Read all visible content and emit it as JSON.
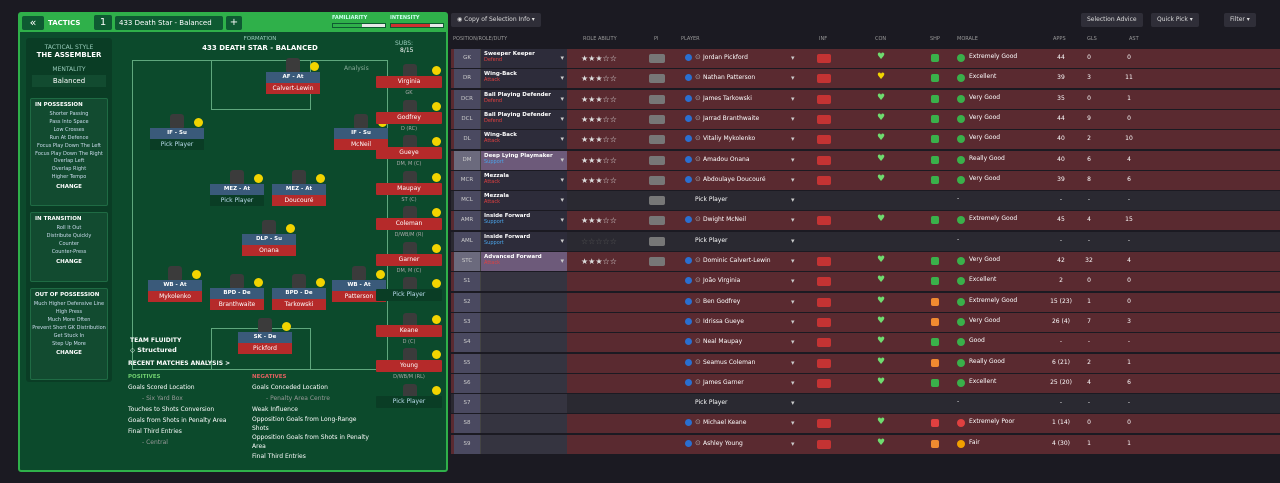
{
  "header": {
    "back_icon": "«",
    "title": "TACTICS",
    "slot": "1",
    "tactic": "433 Death Star - Balanced",
    "add": "+",
    "familiarity": "FAMILIARITY",
    "intensity": "INTENSITY",
    "familiarity_level": 0.55,
    "intensity_level": 0.75
  },
  "style": {
    "label": "TACTICAL STYLE",
    "name": "THE ASSEMBLER",
    "mentality_label": "MENTALITY",
    "mentality": "Balanced"
  },
  "in_possession": {
    "title": "IN POSSESSION",
    "items": [
      "Shorter Passing",
      "Pass Into Space",
      "Low Crosses",
      "Run At Defence",
      "Focus Play Down The Left",
      "Focus Play Down The Right",
      "Overlap Left",
      "Overlap Right",
      "Higher Tempo"
    ],
    "change": "CHANGE"
  },
  "in_transition": {
    "title": "IN TRANSITION",
    "items": [
      "Roll It Out",
      "Distribute Quickly",
      "Counter",
      "Counter-Press"
    ],
    "change": "CHANGE"
  },
  "out_possession": {
    "title": "OUT OF POSSESSION",
    "items": [
      "Much Higher Defensive Line",
      "High Press",
      "Much More Often",
      "Prevent Short GK Distribution",
      "Get Stuck In",
      "Step Up More"
    ],
    "change": "CHANGE"
  },
  "formation": {
    "label": "FORMATION",
    "name": "433 DEATH STAR - BALANCED",
    "subs_label": "SUBS:",
    "subs": "8/15",
    "analysis": "Analysis"
  },
  "pitch": [
    {
      "role": "AF - At",
      "name": "Calvert-Lewin"
    },
    {
      "role": "IF - Su",
      "name": "Pick Player"
    },
    {
      "role": "IF - Su",
      "name": "McNeil"
    },
    {
      "role": "MEZ - At",
      "name": "Pick Player"
    },
    {
      "role": "MEZ - At",
      "name": "Doucouré"
    },
    {
      "role": "DLP - Su",
      "name": "Onana"
    },
    {
      "role": "WB - At",
      "name": "Mykolenko"
    },
    {
      "role": "BPD - De",
      "name": "Branthwaite"
    },
    {
      "role": "BPD - De",
      "name": "Tarkowski"
    },
    {
      "role": "WB - At",
      "name": "Patterson"
    },
    {
      "role": "SK - De",
      "name": "Pickford"
    }
  ],
  "subs": [
    {
      "name": "Virginia",
      "pos": "GK"
    },
    {
      "name": "Godfrey",
      "pos": "D (RC)"
    },
    {
      "name": "Gueye",
      "pos": "DM, M (C)"
    },
    {
      "name": "Maupay",
      "pos": "ST (C)"
    },
    {
      "name": "Coleman",
      "pos": "D/WB/M (R)"
    },
    {
      "name": "Garner",
      "pos": "DM, M (C)"
    },
    {
      "name": "Pick Player",
      "pos": ""
    },
    {
      "name": "Keane",
      "pos": "D (C)"
    },
    {
      "name": "Young",
      "pos": "D/WB/M (RL)"
    },
    {
      "name": "Pick Player",
      "pos": ""
    }
  ],
  "fluidity": {
    "label": "TEAM FLUIDITY",
    "value": "Structured"
  },
  "recent": {
    "title": "RECENT MATCHES ANALYSIS >",
    "pos_label": "POSITIVES",
    "neg_label": "NEGATIVES",
    "positives": [
      "Goals Scored Location",
      "- Six Yard Box",
      "Touches to Shots Conversion",
      "Goals from Shots in Penalty Area",
      "Final Third Entries",
      "- Central"
    ],
    "negatives": [
      "Goals Conceded Location",
      "- Penalty Area Centre",
      "Weak Influence",
      "Opposition Goals from Long-Range Shots",
      "Opposition Goals from Shots in Penalty Area",
      "Final Third Entries"
    ]
  },
  "toolbar": {
    "copy": "Copy of Selection Info",
    "advice": "Selection Advice",
    "quick": "Quick Pick",
    "filter": "Filter"
  },
  "columns": {
    "pos": "POSITION/ROLE/DUTY",
    "ability": "ROLE ABILITY",
    "pi": "PI",
    "player": "PLAYER",
    "inf": "INF",
    "con": "CON",
    "shp": "SHP",
    "morale": "MORALE",
    "apps": "APPS",
    "gls": "GLS",
    "ast": "AST"
  },
  "rows": [
    {
      "pos": "GK",
      "role": "Sweeper Keeper",
      "duty": "Defend",
      "stars": "★★★☆☆",
      "player": "Jordan Pickford",
      "morale": "Extremely Good",
      "apps": "44",
      "gls": "0",
      "ast": "0"
    },
    {
      "pos": "DR",
      "role": "Wing-Back",
      "duty": "Attack",
      "stars": "★★★☆☆",
      "player": "Nathan Patterson",
      "morale": "Excellent",
      "apps": "39",
      "gls": "3",
      "ast": "11"
    },
    {
      "pos": "DCR",
      "role": "Ball Playing Defender",
      "duty": "Defend",
      "stars": "★★★☆☆",
      "player": "James Tarkowski",
      "morale": "Very Good",
      "apps": "35",
      "gls": "0",
      "ast": "1"
    },
    {
      "pos": "DCL",
      "role": "Ball Playing Defender",
      "duty": "Defend",
      "stars": "★★★☆☆",
      "player": "Jarrad Branthwaite",
      "morale": "Very Good",
      "apps": "44",
      "gls": "9",
      "ast": "0"
    },
    {
      "pos": "DL",
      "role": "Wing-Back",
      "duty": "Attack",
      "stars": "★★★☆☆",
      "player": "Vitaliy Mykolenko",
      "morale": "Very Good",
      "apps": "40",
      "gls": "2",
      "ast": "10"
    },
    {
      "pos": "DM",
      "role": "Deep Lying Playmaker",
      "duty": "Support",
      "stars": "★★★☆☆",
      "player": "Amadou Onana",
      "morale": "Really Good",
      "apps": "40",
      "gls": "6",
      "ast": "4"
    },
    {
      "pos": "MCR",
      "role": "Mezzala",
      "duty": "Attack",
      "stars": "★★★☆☆",
      "player": "Abdoulaye Doucouré",
      "morale": "Very Good",
      "apps": "39",
      "gls": "8",
      "ast": "6"
    },
    {
      "pos": "MCL",
      "role": "Mezzala",
      "duty": "Attack",
      "stars": "",
      "player": "Pick Player",
      "morale": "-",
      "apps": "-",
      "gls": "-",
      "ast": "-"
    },
    {
      "pos": "AMR",
      "role": "Inside Forward",
      "duty": "Support",
      "stars": "★★★☆☆",
      "player": "Dwight McNeil",
      "morale": "Extremely Good",
      "apps": "45",
      "gls": "4",
      "ast": "15"
    },
    {
      "pos": "AML",
      "role": "Inside Forward",
      "duty": "Support",
      "stars": "☆☆☆☆☆",
      "player": "Pick Player",
      "morale": "-",
      "apps": "-",
      "gls": "-",
      "ast": "-"
    },
    {
      "pos": "STC",
      "role": "Advanced Forward",
      "duty": "Attack",
      "stars": "★★★☆☆",
      "player": "Dominic Calvert-Lewin",
      "morale": "Very Good",
      "apps": "42",
      "gls": "32",
      "ast": "4"
    },
    {
      "pos": "S1",
      "role": "",
      "duty": "",
      "stars": "",
      "player": "João Virginia",
      "morale": "Excellent",
      "apps": "2",
      "gls": "0",
      "ast": "0"
    },
    {
      "pos": "S2",
      "role": "",
      "duty": "",
      "stars": "",
      "player": "Ben Godfrey",
      "morale": "Extremely Good",
      "apps": "15 (23)",
      "gls": "1",
      "ast": "0"
    },
    {
      "pos": "S3",
      "role": "",
      "duty": "",
      "stars": "",
      "player": "Idrissa Gueye",
      "morale": "Very Good",
      "apps": "26 (4)",
      "gls": "7",
      "ast": "3"
    },
    {
      "pos": "S4",
      "role": "",
      "duty": "",
      "stars": "",
      "player": "Neal Maupay",
      "morale": "Good",
      "apps": "-",
      "gls": "-",
      "ast": "-"
    },
    {
      "pos": "S5",
      "role": "",
      "duty": "",
      "stars": "",
      "player": "Seamus Coleman",
      "morale": "Really Good",
      "apps": "6 (21)",
      "gls": "2",
      "ast": "1"
    },
    {
      "pos": "S6",
      "role": "",
      "duty": "",
      "stars": "",
      "player": "James Garner",
      "morale": "Excellent",
      "apps": "25 (20)",
      "gls": "4",
      "ast": "6"
    },
    {
      "pos": "S7",
      "role": "",
      "duty": "",
      "stars": "",
      "player": "Pick Player",
      "morale": "-",
      "apps": "-",
      "gls": "-",
      "ast": "-"
    },
    {
      "pos": "S8",
      "role": "",
      "duty": "",
      "stars": "",
      "player": "Michael Keane",
      "morale": "Extremely Poor",
      "apps": "1 (14)",
      "gls": "0",
      "ast": "0"
    },
    {
      "pos": "S9",
      "role": "",
      "duty": "",
      "stars": "",
      "player": "Ashley Young",
      "morale": "Fair",
      "apps": "4 (30)",
      "gls": "1",
      "ast": "1"
    }
  ]
}
